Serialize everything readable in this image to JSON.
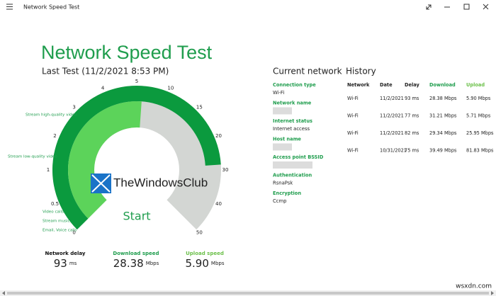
{
  "window": {
    "title": "Network Speed Test"
  },
  "header": {
    "title": "Network Speed Test",
    "subtitle": "Last Test (11/2/2021 8:53 PM)"
  },
  "gauge": {
    "ticks": [
      0,
      0.5,
      1,
      2,
      3,
      4,
      5,
      10,
      15,
      20,
      30,
      40,
      50
    ],
    "annotations": [
      "Stream high-quality video",
      "Stream low-quality video",
      "Video calls",
      "Stream music",
      "Email, Voice calls"
    ],
    "button": "Start",
    "logo": "TheWindowsClub"
  },
  "metrics": [
    {
      "label": "Network delay",
      "value": 93,
      "unit": "ms"
    },
    {
      "label": "Download speed",
      "value": 28.38,
      "unit": "Mbps"
    },
    {
      "label": "Upload speed",
      "value": 5.9,
      "value_label": "5.90",
      "unit": "Mbps"
    }
  ],
  "current_network": {
    "title": "Current network",
    "fields": [
      {
        "label": "Connection type",
        "value": "Wi-Fi"
      },
      {
        "label": "Network name"
      },
      {
        "label": "Internet status",
        "value": "Internet access"
      },
      {
        "label": "Host name"
      },
      {
        "label": "Access point BSSID"
      },
      {
        "label": "Authentication",
        "value": "RsnaPsk"
      },
      {
        "label": "Encryption",
        "value": "Ccmp"
      }
    ]
  },
  "history": {
    "title": "History",
    "columns": [
      "Network",
      "Date",
      "Delay",
      "Download",
      "Upload"
    ],
    "rows": [
      [
        "Wi-Fi",
        "11/2/2021",
        "93 ms",
        "28.38 Mbps",
        "5.90 Mbps"
      ],
      [
        "Wi-Fi",
        "11/2/2021",
        "77 ms",
        "31.21 Mbps",
        "5.71 Mbps"
      ],
      [
        "Wi-Fi",
        "11/2/2021",
        "82 ms",
        "29.34 Mbps",
        "25.95 Mbps"
      ],
      [
        "Wi-Fi",
        "10/31/2021",
        "75 ms",
        "39.49 Mbps",
        "81.83 Mbps"
      ]
    ]
  },
  "watermark": "wsxdn.com"
}
